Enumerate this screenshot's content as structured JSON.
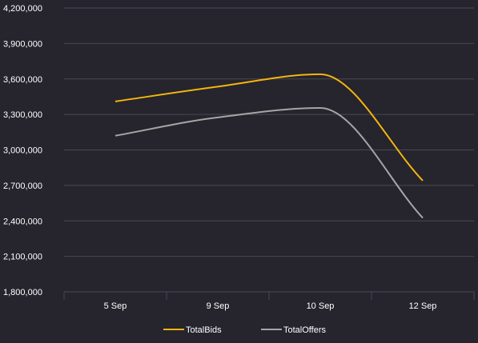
{
  "chart_data": {
    "type": "line",
    "title": "",
    "xlabel": "",
    "ylabel": "",
    "categories": [
      "5 Sep",
      "9 Sep",
      "10 Sep",
      "12 Sep"
    ],
    "series": [
      {
        "name": "TotalBids",
        "color": "#f2b60f",
        "values": [
          3410000,
          3535000,
          3640000,
          2740000
        ]
      },
      {
        "name": "TotalOffers",
        "color": "#a6a6a6",
        "values": [
          3120000,
          3275000,
          3355000,
          2425000
        ]
      }
    ],
    "ylim": [
      1800000,
      4200000
    ],
    "yticks": [
      "1,800,000",
      "2,100,000",
      "2,400,000",
      "2,700,000",
      "3,000,000",
      "3,300,000",
      "3,600,000",
      "3,900,000",
      "4,200,000"
    ],
    "grid": true,
    "legend_position": "bottom-center",
    "colors": {
      "background": "#26242d",
      "grid": "#4a4852",
      "text": "#ffffff"
    }
  }
}
